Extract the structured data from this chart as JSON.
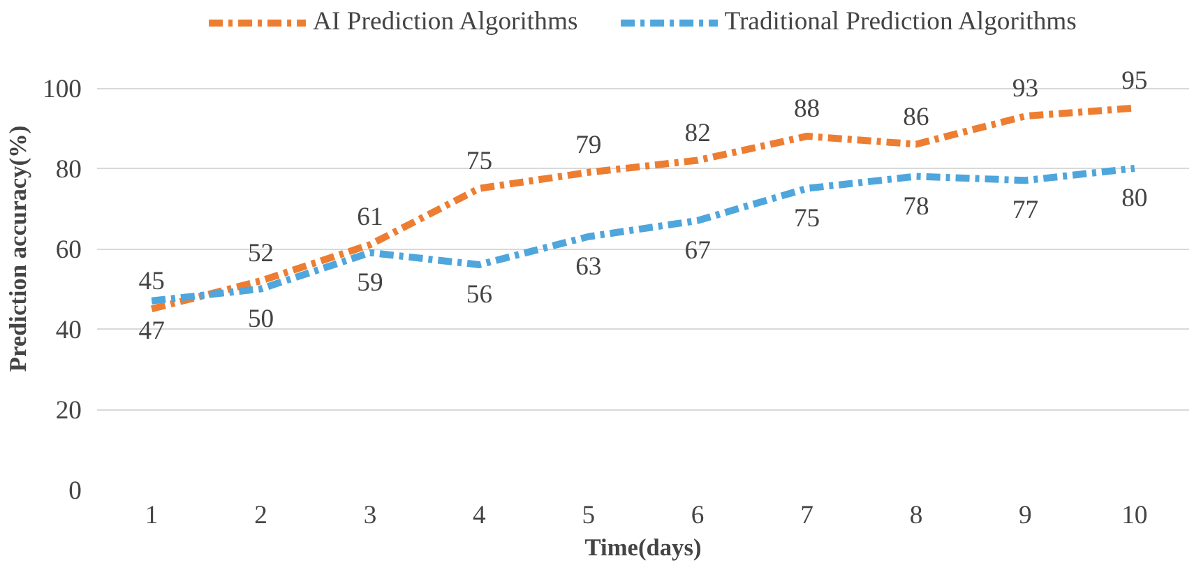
{
  "chart_data": {
    "type": "line",
    "xlabel": "Time(days)",
    "ylabel": "Prediction accuracy(%)",
    "categories": [
      "1",
      "2",
      "3",
      "4",
      "5",
      "6",
      "7",
      "8",
      "9",
      "10"
    ],
    "series": [
      {
        "name": "AI Prediction Algorithms",
        "color": "#ed7d31",
        "values": [
          45,
          52,
          61,
          75,
          79,
          82,
          88,
          86,
          93,
          95
        ]
      },
      {
        "name": "Traditional Prediction Algorithms",
        "color": "#4ea6dc",
        "values": [
          47,
          50,
          59,
          56,
          63,
          67,
          75,
          78,
          77,
          80
        ]
      }
    ],
    "ylim": [
      0,
      100
    ],
    "yticks": [
      0,
      20,
      40,
      60,
      80,
      100
    ],
    "grid": "y",
    "legend": "top",
    "line_style": "dashed",
    "marker": "none",
    "data_labels": true
  }
}
